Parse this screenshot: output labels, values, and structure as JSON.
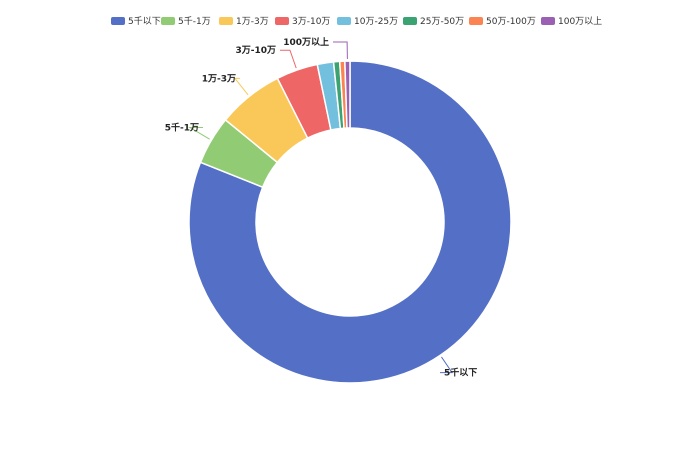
{
  "chart_data": {
    "type": "pie",
    "variant": "donut",
    "legend_position": "top",
    "title": "",
    "categories": [
      "5千以下",
      "5千-1万",
      "1万-3万",
      "3万-10万",
      "10万-25万",
      "25万-50万",
      "50万-100万",
      "100万以上"
    ],
    "values": [
      79.5,
      4.8,
      6.5,
      4.1,
      1.6,
      0.6,
      0.5,
      0.5
    ],
    "value_unit": "%",
    "colors": [
      "#5470c6",
      "#91cc75",
      "#fac858",
      "#ee6666",
      "#73c0de",
      "#3ba272",
      "#fc8452",
      "#9a60b4"
    ],
    "callout_labels": [
      "5千以下",
      "5千-1万",
      "1万-3万",
      "3万-10万",
      "100万以上"
    ]
  }
}
